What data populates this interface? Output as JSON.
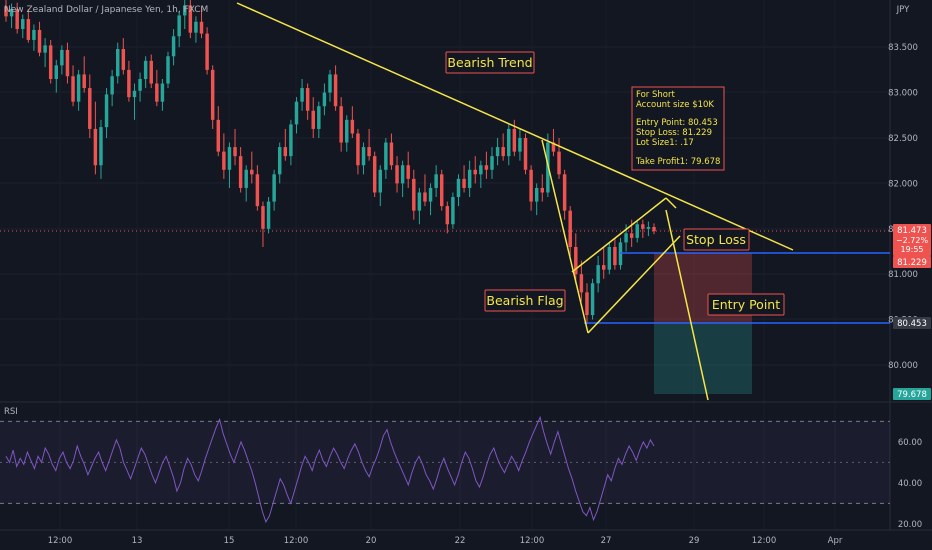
{
  "header": {
    "symbol_title": "New Zealand Dollar / Japanese Yen, 1h, FXCM",
    "currency": "JPY"
  },
  "colors": {
    "background": "#131722",
    "grid": "#1e222d",
    "up": "#26a69a",
    "down": "#ef5350",
    "trendline": "#f5e646",
    "hline": "#2962ff",
    "label_text": "#f5e646",
    "label_border": "#ef5350",
    "label_bg": "#131722",
    "rsi_line": "#7e57c2",
    "rsi_band": "#2a2640",
    "axis_text": "#b2b5be",
    "stop_zone": "#ef5350",
    "target_zone": "#26a69a"
  },
  "chart_data": {
    "type": "candlestick",
    "price_axis": {
      "ticks": [
        "83.500",
        "83.000",
        "82.500",
        "82.000",
        "81.500",
        "81.000",
        "80.500",
        "80.000"
      ],
      "values": [
        83.5,
        83.0,
        82.5,
        82.0,
        81.5,
        81.0,
        80.5,
        80.0
      ]
    },
    "rsi": {
      "label": "RSI",
      "ticks": [
        "60.00",
        "40.00",
        "20.00"
      ],
      "tick_values": [
        60,
        40,
        20
      ],
      "band": [
        30,
        70
      ],
      "ylim": [
        18,
        78
      ],
      "values": [
        53,
        50,
        56,
        48,
        52,
        49,
        55,
        51,
        47,
        53,
        50,
        57,
        54,
        49,
        46,
        52,
        55,
        50,
        47,
        51,
        58,
        53,
        49,
        44,
        48,
        52,
        55,
        50,
        46,
        51,
        56,
        61,
        57,
        50,
        46,
        42,
        47,
        52,
        57,
        54,
        49,
        44,
        40,
        45,
        50,
        53,
        48,
        43,
        36,
        40,
        47,
        52,
        49,
        44,
        41,
        46,
        52,
        57,
        62,
        67,
        71,
        64,
        59,
        54,
        50,
        55,
        60,
        56,
        51,
        46,
        40,
        33,
        26,
        21,
        24,
        30,
        36,
        42,
        39,
        34,
        30,
        36,
        42,
        48,
        53,
        50,
        46,
        52,
        56,
        51,
        48,
        53,
        57,
        54,
        50,
        47,
        52,
        56,
        59,
        55,
        50,
        46,
        43,
        48,
        52,
        57,
        63,
        66,
        60,
        55,
        51,
        47,
        43,
        39,
        45,
        50,
        53,
        49,
        44,
        41,
        37,
        42,
        48,
        52,
        47,
        43,
        39,
        44,
        50,
        55,
        52,
        47,
        41,
        38,
        43,
        49,
        54,
        57,
        52,
        48,
        45,
        49,
        53,
        50,
        46,
        51,
        55,
        60,
        64,
        68,
        72,
        65,
        59,
        54,
        60,
        65,
        59,
        53,
        47,
        42,
        36,
        31,
        26,
        24,
        28,
        22,
        26,
        32,
        38,
        44,
        41,
        47,
        52,
        49,
        54,
        58,
        55,
        51,
        56,
        60,
        57,
        61,
        58
      ]
    },
    "x_axis": {
      "ticks": [
        "12:00",
        "13",
        "15",
        "12:00",
        "20",
        "22",
        "12:00",
        "27",
        "29",
        "12:00",
        "Apr"
      ]
    },
    "current_price": {
      "value": 81.473,
      "label": "81.473",
      "change": "−2.72%",
      "countdown": "19:55"
    },
    "levels": [
      {
        "name": "stop",
        "value": 81.229,
        "label": "81.229"
      },
      {
        "name": "entry",
        "value": 80.453,
        "label": "80.453"
      },
      {
        "name": "target",
        "value": 79.678,
        "label": "79.678"
      }
    ],
    "candles": [
      [
        83.95,
        84.05,
        83.78,
        83.84
      ],
      [
        83.84,
        83.98,
        83.71,
        83.92
      ],
      [
        83.92,
        83.99,
        83.65,
        83.7
      ],
      [
        83.7,
        83.86,
        83.6,
        83.81
      ],
      [
        83.81,
        83.92,
        83.55,
        83.58
      ],
      [
        83.58,
        83.75,
        83.46,
        83.69
      ],
      [
        83.69,
        83.78,
        83.4,
        83.44
      ],
      [
        83.44,
        83.6,
        83.28,
        83.52
      ],
      [
        83.52,
        83.58,
        83.1,
        83.15
      ],
      [
        83.15,
        83.36,
        83.0,
        83.3
      ],
      [
        83.3,
        83.52,
        83.2,
        83.47
      ],
      [
        83.47,
        83.55,
        83.1,
        83.18
      ],
      [
        83.18,
        83.3,
        82.85,
        82.9
      ],
      [
        82.9,
        83.25,
        82.8,
        83.2
      ],
      [
        83.2,
        83.4,
        83.0,
        83.05
      ],
      [
        83.05,
        83.2,
        82.5,
        82.6
      ],
      [
        82.6,
        82.9,
        82.1,
        82.2
      ],
      [
        82.2,
        82.7,
        82.05,
        82.62
      ],
      [
        82.62,
        83.05,
        82.5,
        82.98
      ],
      [
        82.98,
        83.25,
        82.85,
        83.18
      ],
      [
        83.18,
        83.55,
        83.1,
        83.48
      ],
      [
        83.48,
        83.6,
        83.2,
        83.25
      ],
      [
        83.25,
        83.35,
        82.9,
        82.95
      ],
      [
        82.95,
        83.1,
        82.7,
        83.02
      ],
      [
        83.02,
        83.22,
        82.9,
        83.15
      ],
      [
        83.15,
        83.4,
        83.05,
        83.35
      ],
      [
        83.35,
        83.42,
        83.05,
        83.1
      ],
      [
        83.1,
        83.25,
        82.85,
        82.9
      ],
      [
        82.9,
        83.15,
        82.8,
        83.1
      ],
      [
        83.1,
        83.45,
        83.05,
        83.4
      ],
      [
        83.4,
        83.7,
        83.3,
        83.62
      ],
      [
        83.62,
        83.9,
        83.5,
        83.85
      ],
      [
        83.85,
        84.05,
        83.7,
        83.96
      ],
      [
        83.96,
        84.02,
        83.6,
        83.66
      ],
      [
        83.66,
        83.84,
        83.55,
        83.78
      ],
      [
        83.78,
        83.95,
        83.6,
        83.65
      ],
      [
        83.65,
        83.72,
        83.2,
        83.25
      ],
      [
        83.25,
        83.3,
        82.6,
        82.7
      ],
      [
        82.7,
        82.85,
        82.3,
        82.35
      ],
      [
        82.35,
        82.55,
        82.05,
        82.15
      ],
      [
        82.15,
        82.45,
        81.95,
        82.4
      ],
      [
        82.4,
        82.6,
        82.2,
        82.3
      ],
      [
        82.3,
        82.4,
        81.9,
        81.95
      ],
      [
        81.95,
        82.2,
        81.8,
        82.15
      ],
      [
        82.15,
        82.35,
        82.0,
        82.1
      ],
      [
        82.1,
        82.2,
        81.7,
        81.75
      ],
      [
        81.75,
        81.8,
        81.3,
        81.5
      ],
      [
        81.5,
        81.85,
        81.45,
        81.8
      ],
      [
        81.8,
        82.15,
        81.7,
        82.1
      ],
      [
        82.1,
        82.45,
        82.0,
        82.4
      ],
      [
        82.4,
        82.6,
        82.25,
        82.3
      ],
      [
        82.3,
        82.7,
        82.2,
        82.65
      ],
      [
        82.65,
        82.95,
        82.55,
        82.9
      ],
      [
        82.9,
        83.15,
        82.8,
        83.05
      ],
      [
        83.05,
        83.1,
        82.7,
        82.8
      ],
      [
        82.8,
        82.95,
        82.5,
        82.6
      ],
      [
        82.6,
        82.9,
        82.5,
        82.85
      ],
      [
        82.85,
        83.1,
        82.75,
        83.0
      ],
      [
        83.0,
        83.25,
        82.9,
        83.2
      ],
      [
        83.2,
        83.3,
        82.8,
        82.85
      ],
      [
        82.85,
        82.95,
        82.35,
        82.45
      ],
      [
        82.45,
        82.75,
        82.35,
        82.7
      ],
      [
        82.7,
        82.85,
        82.5,
        82.55
      ],
      [
        82.55,
        82.6,
        82.1,
        82.2
      ],
      [
        82.2,
        82.45,
        82.1,
        82.4
      ],
      [
        82.4,
        82.6,
        82.25,
        82.3
      ],
      [
        82.3,
        82.35,
        81.85,
        81.9
      ],
      [
        81.9,
        82.2,
        81.75,
        82.15
      ],
      [
        82.15,
        82.5,
        82.05,
        82.45
      ],
      [
        82.45,
        82.55,
        82.15,
        82.2
      ],
      [
        82.2,
        82.3,
        81.9,
        82.0
      ],
      [
        82.0,
        82.25,
        81.85,
        82.2
      ],
      [
        82.2,
        82.35,
        81.95,
        82.05
      ],
      [
        82.05,
        82.15,
        81.6,
        81.7
      ],
      [
        81.7,
        81.95,
        81.55,
        81.9
      ],
      [
        81.9,
        82.1,
        81.75,
        81.8
      ],
      [
        81.8,
        82.0,
        81.65,
        81.95
      ],
      [
        81.95,
        82.2,
        81.85,
        82.1
      ],
      [
        82.1,
        82.15,
        81.7,
        81.75
      ],
      [
        81.75,
        81.8,
        81.45,
        81.55
      ],
      [
        81.55,
        81.9,
        81.5,
        81.85
      ],
      [
        81.85,
        82.1,
        81.75,
        82.05
      ],
      [
        82.05,
        82.2,
        81.9,
        81.95
      ],
      [
        81.95,
        82.25,
        81.85,
        82.15
      ],
      [
        82.15,
        82.3,
        82.0,
        82.1
      ],
      [
        82.1,
        82.25,
        81.95,
        82.2
      ],
      [
        82.2,
        82.35,
        82.05,
        82.15
      ],
      [
        82.15,
        82.4,
        82.05,
        82.3
      ],
      [
        82.3,
        82.5,
        82.2,
        82.4
      ],
      [
        82.4,
        82.55,
        82.25,
        82.3
      ],
      [
        82.3,
        82.65,
        82.2,
        82.6
      ],
      [
        82.6,
        82.7,
        82.3,
        82.35
      ],
      [
        82.35,
        82.6,
        82.25,
        82.5
      ],
      [
        82.5,
        82.55,
        82.1,
        82.15
      ],
      [
        82.15,
        82.2,
        81.7,
        81.8
      ],
      [
        81.8,
        82.0,
        81.65,
        81.95
      ],
      [
        81.95,
        82.1,
        81.8,
        81.9
      ],
      [
        81.9,
        82.55,
        81.85,
        82.45
      ],
      [
        82.45,
        82.6,
        82.3,
        82.35
      ],
      [
        82.35,
        82.5,
        82.05,
        82.1
      ],
      [
        82.1,
        82.15,
        81.6,
        81.7
      ],
      [
        81.7,
        81.75,
        81.2,
        81.3
      ],
      [
        81.3,
        81.45,
        80.9,
        81.0
      ],
      [
        81.0,
        81.15,
        80.7,
        80.8
      ],
      [
        80.8,
        80.9,
        80.45,
        80.55
      ],
      [
        80.55,
        80.95,
        80.5,
        80.9
      ],
      [
        80.9,
        81.2,
        80.8,
        81.1
      ],
      [
        81.1,
        81.3,
        80.95,
        81.05
      ],
      [
        81.05,
        81.35,
        81.0,
        81.3
      ],
      [
        81.3,
        81.4,
        81.05,
        81.1
      ],
      [
        81.1,
        81.4,
        81.05,
        81.35
      ],
      [
        81.35,
        81.55,
        81.25,
        81.45
      ],
      [
        81.45,
        81.6,
        81.3,
        81.4
      ],
      [
        81.4,
        81.6,
        81.35,
        81.55
      ],
      [
        81.55,
        81.6,
        81.4,
        81.5
      ],
      [
        81.5,
        81.58,
        81.42,
        81.52
      ],
      [
        81.52,
        81.56,
        81.44,
        81.473
      ]
    ]
  },
  "annotations": {
    "bearish_trend": "Bearish Trend",
    "bearish_flag": "Bearish Flag",
    "stop_loss": "Stop Loss",
    "entry_point": "Entry Point",
    "trade_note": {
      "line1": "For Short",
      "line2": "Account size $10K",
      "line3": "Entry Point: 80.453",
      "line4": "Stop Loss: 81.229",
      "line5": "Lot Size1: .17",
      "line6": "Take Profit1: 79.678"
    }
  }
}
